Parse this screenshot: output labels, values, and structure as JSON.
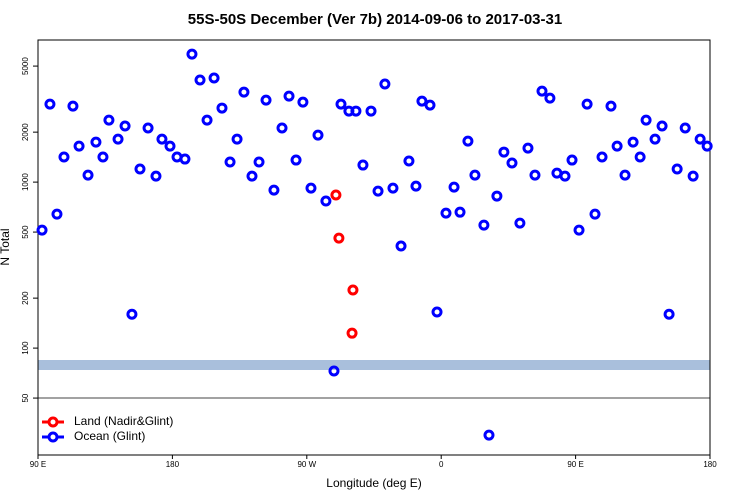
{
  "chart_data": {
    "type": "scatter",
    "title": "55S-50S December (Ver 7b)   2014-09-06 to 2017-03-31",
    "x_label": "Longitude (deg E)",
    "y_label": "N Total",
    "y_scale": "log",
    "legend": "bottom-left",
    "xlim": [
      90,
      540
    ],
    "ylim": [
      22.7,
      7180
    ],
    "xticks": [
      {
        "value": 90,
        "label": "90 E"
      },
      180,
      {
        "value": 270,
        "label": "90 W"
      },
      {
        "value": 360,
        "label": "0"
      },
      {
        "value": 450,
        "label": "90 E"
      },
      {
        "value": 540,
        "label": "180"
      }
    ],
    "yticks": [
      50,
      100,
      200,
      500,
      1000,
      2000,
      5000
    ],
    "series": [
      {
        "name": "Land (Nadir&Glint)",
        "color": "#ff0000",
        "x": [
          289.5,
          291.5,
          300.9,
          300.3
        ],
        "values": [
          836,
          460,
          224,
          123
        ]
      },
      {
        "name": "Ocean (Glint)",
        "color": "#0000ff",
        "x": [
          92.7,
          98.0,
          102.7,
          107.4,
          113.4,
          117.5,
          123.5,
          128.8,
          133.5,
          137.5,
          143.6,
          148.3,
          152.9,
          158.3,
          163.7,
          169.0,
          173.0,
          178.4,
          183.1,
          188.4,
          193.1,
          198.5,
          203.2,
          207.9,
          213.2,
          218.6,
          223.3,
          227.9,
          233.3,
          238.0,
          242.7,
          248.0,
          253.4,
          258.1,
          262.8,
          267.4,
          272.8,
          277.5,
          282.8,
          288.2,
          292.9,
          298.2,
          302.9,
          307.6,
          313.0,
          317.7,
          322.3,
          327.7,
          333.1,
          338.4,
          343.1,
          347.1,
          352.5,
          357.2,
          363.2,
          368.6,
          372.6,
          377.9,
          382.6,
          388.6,
          392.0,
          397.3,
          402.0,
          407.4,
          412.7,
          418.1,
          422.8,
          427.5,
          432.8,
          437.5,
          442.9,
          447.6,
          452.3,
          457.7,
          463.0,
          467.7,
          473.7,
          477.8,
          483.1,
          488.5,
          493.2,
          497.2,
          503.2,
          507.9,
          512.6,
          518.0,
          523.4,
          528.7,
          533.4,
          538.1
        ],
        "values": [
          514,
          2951,
          641,
          1416,
          2871,
          1648,
          1102,
          1742,
          1416,
          2364,
          1816,
          2178,
          160,
          1199,
          2118,
          1087,
          1816,
          1648,
          1416,
          1377,
          5902,
          4121,
          2364,
          4236,
          2793,
          1321,
          1816,
          3483,
          1087,
          1321,
          3119,
          895,
          2118,
          3296,
          1358,
          3034,
          920,
          1919,
          769,
          72.8,
          2951,
          2679,
          2679,
          1267,
          2679,
          883,
          3899,
          920,
          412,
          1340,
          946,
          3076,
          2911,
          165,
          650,
          933,
          659,
          1766,
          1102,
          551,
          29.9,
          824,
          1517,
          1303,
          566,
          1603,
          1102,
          3532,
          3206,
          1132,
          1087,
          1358,
          514,
          2951,
          641,
          1416,
          2871,
          1648,
          1102,
          1742,
          1416,
          2364,
          1816,
          2178,
          160,
          1199,
          2118,
          1087,
          1816,
          1648
        ]
      }
    ]
  }
}
